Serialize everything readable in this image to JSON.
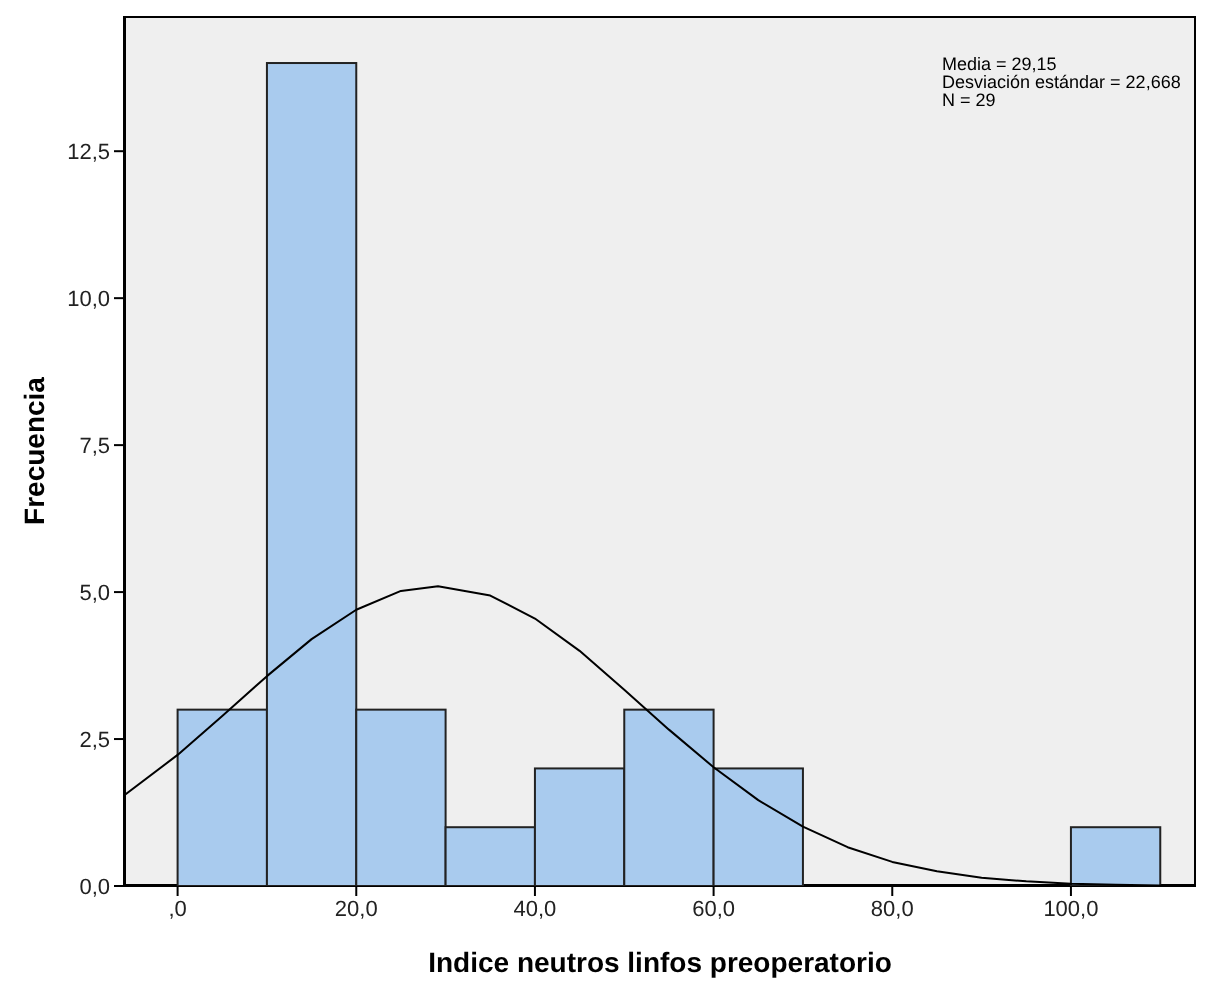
{
  "chart_data": {
    "type": "histogram",
    "xlabel": "Indice neutros linfos preoperatorio",
    "ylabel": "Frecuencia",
    "annotations": [
      "Media = 29,15",
      "Desviación estándar = 22,668",
      "N = 29"
    ],
    "bins": [
      0,
      10,
      20,
      30,
      40,
      50,
      60,
      70,
      80,
      90,
      100,
      110
    ],
    "values": [
      3,
      14,
      3,
      1,
      2,
      3,
      2,
      0,
      0,
      0,
      1
    ],
    "color": "#a9cbee",
    "series": [
      {
        "type": "line",
        "color": "#000000",
        "x": [
          -6,
          0,
          5,
          10,
          15,
          20,
          25,
          29.15,
          35,
          40,
          45,
          50,
          55,
          60,
          65,
          70,
          75,
          80,
          85,
          90,
          95,
          100,
          105,
          110,
          114
        ],
        "values": [
          1.54,
          2.23,
          2.89,
          3.57,
          4.2,
          4.7,
          5.02,
          5.1,
          4.94,
          4.55,
          4.0,
          3.34,
          2.66,
          2.02,
          1.46,
          1.01,
          0.66,
          0.41,
          0.25,
          0.14,
          0.08,
          0.04,
          0.02,
          0.01,
          0.0
        ]
      }
    ],
    "xlim": [
      -6,
      114
    ],
    "xticks": [
      {
        "value": 0,
        "label": ",0"
      },
      {
        "value": 20,
        "label": "20,0"
      },
      {
        "value": 40,
        "label": "40,0"
      },
      {
        "value": 60,
        "label": "60,0"
      },
      {
        "value": 80,
        "label": "80,0"
      },
      {
        "value": 100,
        "label": "100,0"
      }
    ],
    "ylim": [
      0,
      14.8
    ],
    "yticks": [
      {
        "value": 0,
        "label": "0,0"
      },
      {
        "value": 2.5,
        "label": "2,5"
      },
      {
        "value": 5,
        "label": "5,0"
      },
      {
        "value": 7.5,
        "label": "7,5"
      },
      {
        "value": 10,
        "label": "10,0"
      },
      {
        "value": 12.5,
        "label": "12,5"
      }
    ],
    "grid": false,
    "legend": false
  }
}
